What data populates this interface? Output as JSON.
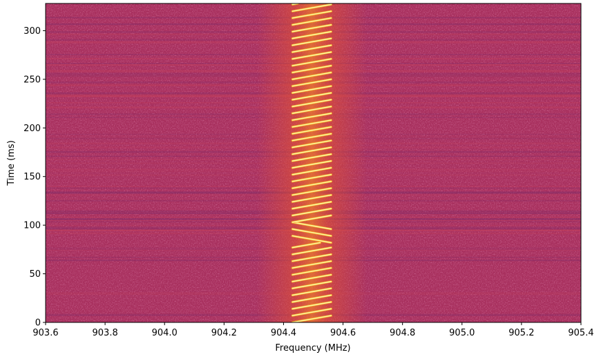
{
  "chart_data": {
    "type": "heatmap",
    "title": "",
    "xlabel": "Frequency (MHz)",
    "ylabel": "Time (ms)",
    "xlim": [
      903.6,
      905.4
    ],
    "ylim": [
      0,
      328
    ],
    "x_ticks": [
      903.6,
      903.8,
      904.0,
      904.2,
      904.4,
      904.6,
      904.8,
      905.0,
      905.2,
      905.4
    ],
    "x_tick_labels": [
      "903.6",
      "903.8",
      "904.0",
      "904.2",
      "904.4",
      "904.6",
      "904.8",
      "905.0",
      "905.2",
      "905.4"
    ],
    "y_ticks": [
      0,
      50,
      100,
      150,
      200,
      250,
      300
    ],
    "y_tick_labels": [
      "0",
      "50",
      "100",
      "150",
      "200",
      "250",
      "300"
    ],
    "colormap": "inferno",
    "background_color": "#a8305e",
    "signal": {
      "band_low": 904.43,
      "band_high": 904.56,
      "chirp_period_ms": 7.0,
      "upchirps_start_ms": 0,
      "upchirps_end_ms": 82,
      "downchirps_start_ms": 82,
      "downchirps_end_ms": 103,
      "upchirps2_start_ms": 103,
      "upchirps2_end_ms": 328
    },
    "grid": false,
    "legend": "none"
  }
}
